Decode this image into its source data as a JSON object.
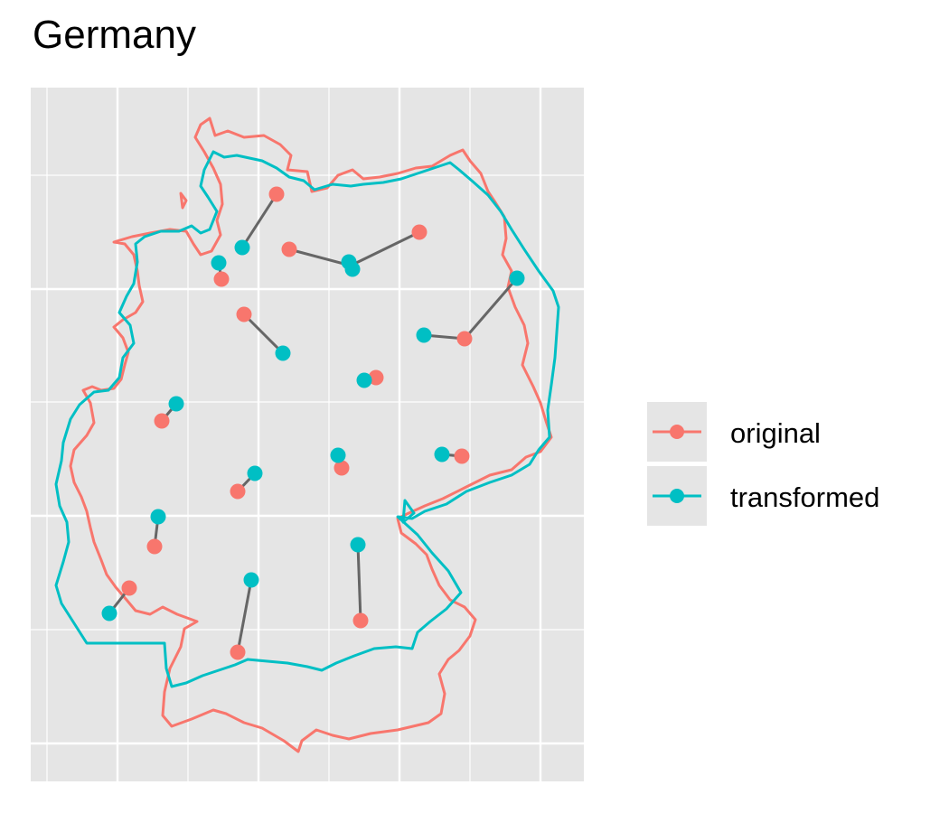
{
  "chart_data": {
    "type": "scatter",
    "title": "Germany",
    "xlabel": "",
    "ylabel": "",
    "grid": true,
    "legend_position": "right",
    "legend": [
      {
        "name": "original",
        "color": "#F8766D"
      },
      {
        "name": "transformed",
        "color": "#00BFC4"
      }
    ],
    "segment_color": "#666666",
    "panel_background": "#E5E5E5",
    "grid_color": "#FFFFFF",
    "series": [
      {
        "name": "original",
        "color": "#F8766D",
        "points": [
          [
            306,
            215
          ],
          [
            320,
            276
          ],
          [
            464,
            257
          ],
          [
            245,
            309
          ],
          [
            270,
            348
          ],
          [
            514,
            375
          ],
          [
            416,
            418
          ],
          [
            179,
            466
          ],
          [
            378,
            518
          ],
          [
            511,
            505
          ],
          [
            263,
            544
          ],
          [
            171,
            605
          ],
          [
            143,
            651
          ],
          [
            399,
            687
          ],
          [
            263,
            722
          ]
        ]
      },
      {
        "name": "transformed",
        "color": "#00BFC4",
        "points": [
          [
            268,
            274
          ],
          [
            390,
            298
          ],
          [
            386,
            290
          ],
          [
            242,
            291
          ],
          [
            313,
            391
          ],
          [
            469,
            371
          ],
          [
            403,
            421
          ],
          [
            195,
            447
          ],
          [
            374,
            504
          ],
          [
            489,
            503
          ],
          [
            282,
            524
          ],
          [
            175,
            572
          ],
          [
            121,
            679
          ],
          [
            396,
            603
          ],
          [
            278,
            642
          ]
        ]
      }
    ],
    "links": [
      [
        306,
        215,
        268,
        274
      ],
      [
        320,
        276,
        388,
        294
      ],
      [
        464,
        257,
        388,
        294
      ],
      [
        245,
        309,
        242,
        291
      ],
      [
        270,
        348,
        313,
        391
      ],
      [
        514,
        375,
        469,
        371
      ],
      [
        572,
        308,
        514,
        375
      ],
      [
        416,
        418,
        403,
        421
      ],
      [
        179,
        466,
        195,
        447
      ],
      [
        378,
        518,
        374,
        504
      ],
      [
        511,
        505,
        489,
        503
      ],
      [
        263,
        544,
        282,
        524
      ],
      [
        171,
        605,
        175,
        572
      ],
      [
        143,
        651,
        121,
        679
      ],
      [
        399,
        687,
        396,
        603
      ],
      [
        263,
        722,
        278,
        642
      ]
    ],
    "extra_points": [
      {
        "series": "transformed",
        "xy": [
          572,
          308
        ]
      }
    ]
  }
}
